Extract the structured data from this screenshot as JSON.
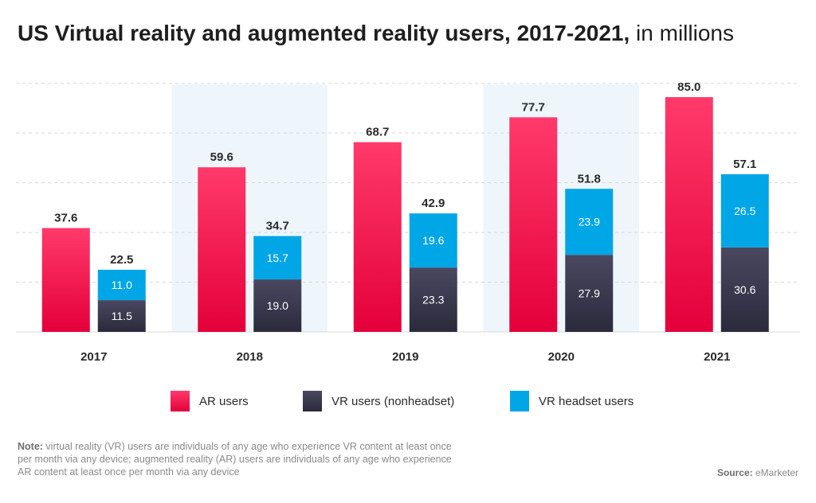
{
  "title": {
    "main": "US Virtual reality and augmented reality users, 2017-2021,",
    "suffix": " in millions"
  },
  "note": {
    "label": "Note:",
    "text": " virtual reality (VR) users are individuals of any age who experience VR content at least once per month via any device; augmented reality (AR) users are individuals of any age who experience AR content at least once per month via any device"
  },
  "source": {
    "label": "Source:",
    "text": " eMarketer"
  },
  "colors": {
    "ar_top": "#ff3a6a",
    "ar_bottom": "#e4003a",
    "vr_nonheadset_top": "#4a4860",
    "vr_nonheadset_bottom": "#2b2a3c",
    "vr_headset": "#00a6e6",
    "band": "#eef6fb",
    "grid": "#d8d8d8"
  },
  "chart_data": {
    "type": "bar",
    "categories": [
      "2017",
      "2018",
      "2019",
      "2020",
      "2021"
    ],
    "ar_users": {
      "name": "AR users",
      "values": [
        37.6,
        59.6,
        68.7,
        77.7,
        85.0
      ]
    },
    "vr_stack": [
      {
        "name": "VR users (nonheadset)",
        "values": [
          11.5,
          19.0,
          23.3,
          27.9,
          30.6
        ]
      },
      {
        "name": "VR headset users",
        "values": [
          11.0,
          15.7,
          19.6,
          23.9,
          26.5
        ]
      }
    ],
    "vr_totals": [
      22.5,
      34.7,
      42.9,
      51.8,
      57.1
    ],
    "ylim": [
      0,
      90
    ],
    "grid": true,
    "legend_position": "bottom"
  }
}
